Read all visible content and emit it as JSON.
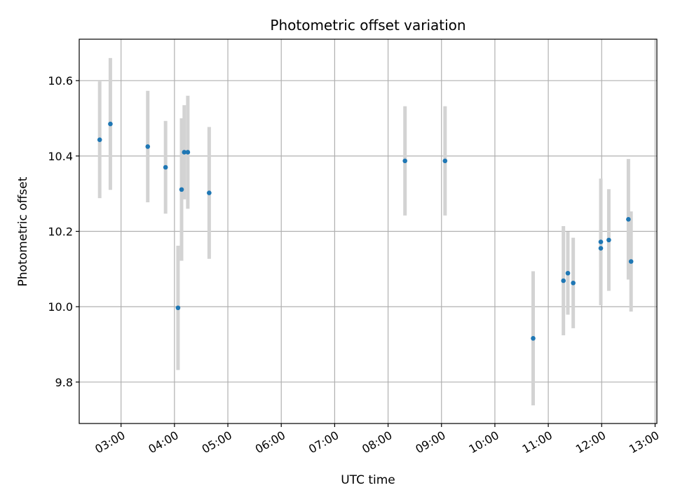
{
  "chart_data": {
    "type": "scatter",
    "title": "Photometric offset variation",
    "xlabel": "UTC time",
    "ylabel": "Photometric offset",
    "xlim": [
      "02:13",
      "13:02"
    ],
    "ylim": [
      9.69,
      10.71
    ],
    "grid": true,
    "x_ticks": [
      "03:00",
      "04:00",
      "05:00",
      "06:00",
      "07:00",
      "08:00",
      "09:00",
      "10:00",
      "11:00",
      "12:00",
      "13:00"
    ],
    "y_ticks": [
      9.8,
      10.0,
      10.2,
      10.4,
      10.6
    ],
    "y_tick_labels": [
      "9.8",
      "10.0",
      "10.2",
      "10.4",
      "10.6"
    ],
    "points_color": "#1f77b4",
    "errorbar_color": "#d3d3d3",
    "points": [
      {
        "x": "02:36",
        "y": 10.443,
        "err": 0.155
      },
      {
        "x": "02:48",
        "y": 10.485,
        "err": 0.175
      },
      {
        "x": "03:30",
        "y": 10.425,
        "err": 0.148
      },
      {
        "x": "03:50",
        "y": 10.37,
        "err": 0.123
      },
      {
        "x": "04:04",
        "y": 9.997,
        "err": 0.165
      },
      {
        "x": "04:08",
        "y": 10.311,
        "err": 0.189
      },
      {
        "x": "04:11",
        "y": 10.41,
        "err": 0.125
      },
      {
        "x": "04:15",
        "y": 10.41,
        "err": 0.15
      },
      {
        "x": "04:39",
        "y": 10.302,
        "err": 0.175
      },
      {
        "x": "08:19",
        "y": 10.387,
        "err": 0.145
      },
      {
        "x": "09:04",
        "y": 10.387,
        "err": 0.145
      },
      {
        "x": "10:43",
        "y": 9.916,
        "err": 0.178
      },
      {
        "x": "11:17",
        "y": 10.069,
        "err": 0.145
      },
      {
        "x": "11:22",
        "y": 10.089,
        "err": 0.11
      },
      {
        "x": "11:28",
        "y": 10.063,
        "err": 0.12
      },
      {
        "x": "11:59",
        "y": 10.172,
        "err": 0.168
      },
      {
        "x": "11:59",
        "y": 10.155,
        "err": 0.05
      },
      {
        "x": "12:08",
        "y": 10.177,
        "err": 0.135
      },
      {
        "x": "12:30",
        "y": 10.232,
        "err": 0.16
      },
      {
        "x": "12:33",
        "y": 10.12,
        "err": 0.133
      }
    ]
  }
}
